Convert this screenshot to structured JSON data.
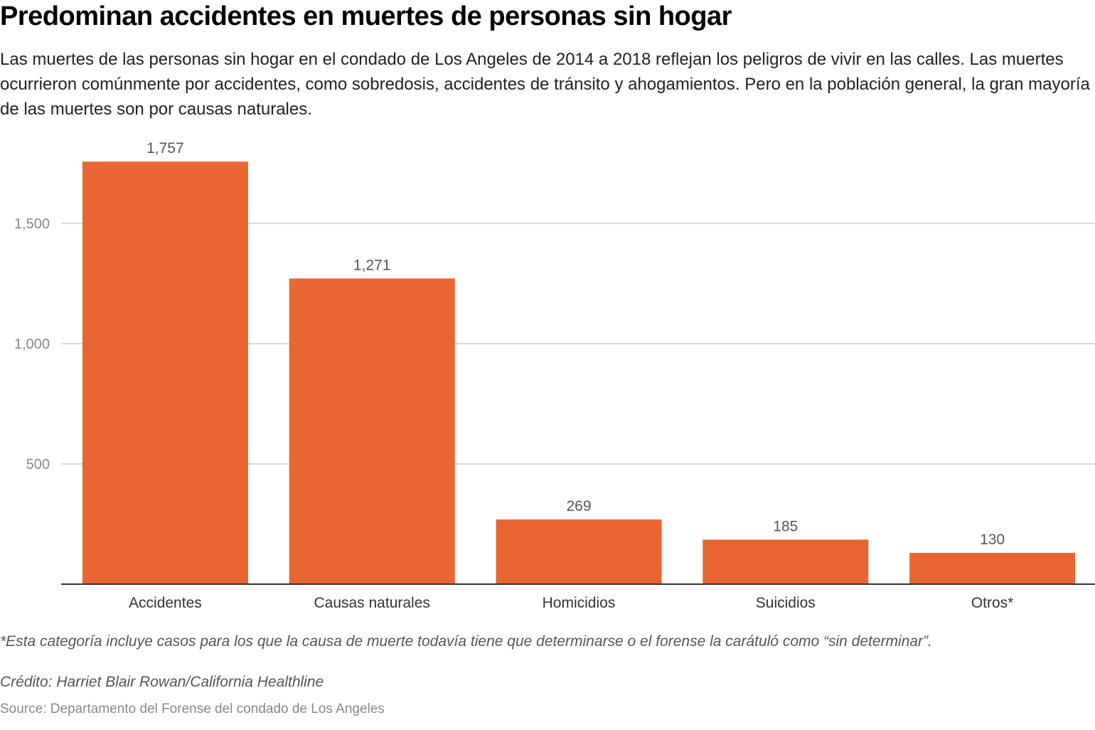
{
  "header": {
    "title": "Predominan accidentes en muertes de personas sin hogar",
    "description": "Las muertes de las personas sin hogar en el condado de Los Angeles de 2014 a 2018 reflejan los peligros de vivir en las calles. Las muertes ocurrieron comúnmente por accidentes, como sobredosis, accidentes de tránsito y ahogamientos. Pero en la población general, la gran mayoría de las muertes son por causas naturales."
  },
  "chart_data": {
    "type": "bar",
    "title": "Predominan accidentes en muertes de personas sin hogar",
    "xlabel": "",
    "ylabel": "",
    "categories": [
      "Accidentes",
      "Causas naturales",
      "Homicidios",
      "Suicidios",
      "Otros*"
    ],
    "values": [
      1757,
      1271,
      269,
      185,
      130
    ],
    "value_labels": [
      "1,757",
      "1,271",
      "269",
      "185",
      "130"
    ],
    "ylim": [
      0,
      1800
    ],
    "yticks": [
      500,
      1000,
      1500
    ],
    "ytick_labels": [
      "500",
      "1,000",
      "1,500"
    ],
    "grid": true,
    "legend": "none",
    "bar_color": "#e96532"
  },
  "footer": {
    "footnote": "*Esta categoría incluye casos para los que la causa de muerte todavía tiene que determinarse o el forense la carátuló como “sin determinar”.",
    "credit": "Crédito: Harriet Blair Rowan/California Healthline",
    "source": "Source: Departamento del Forense del condado de Los Angeles"
  }
}
